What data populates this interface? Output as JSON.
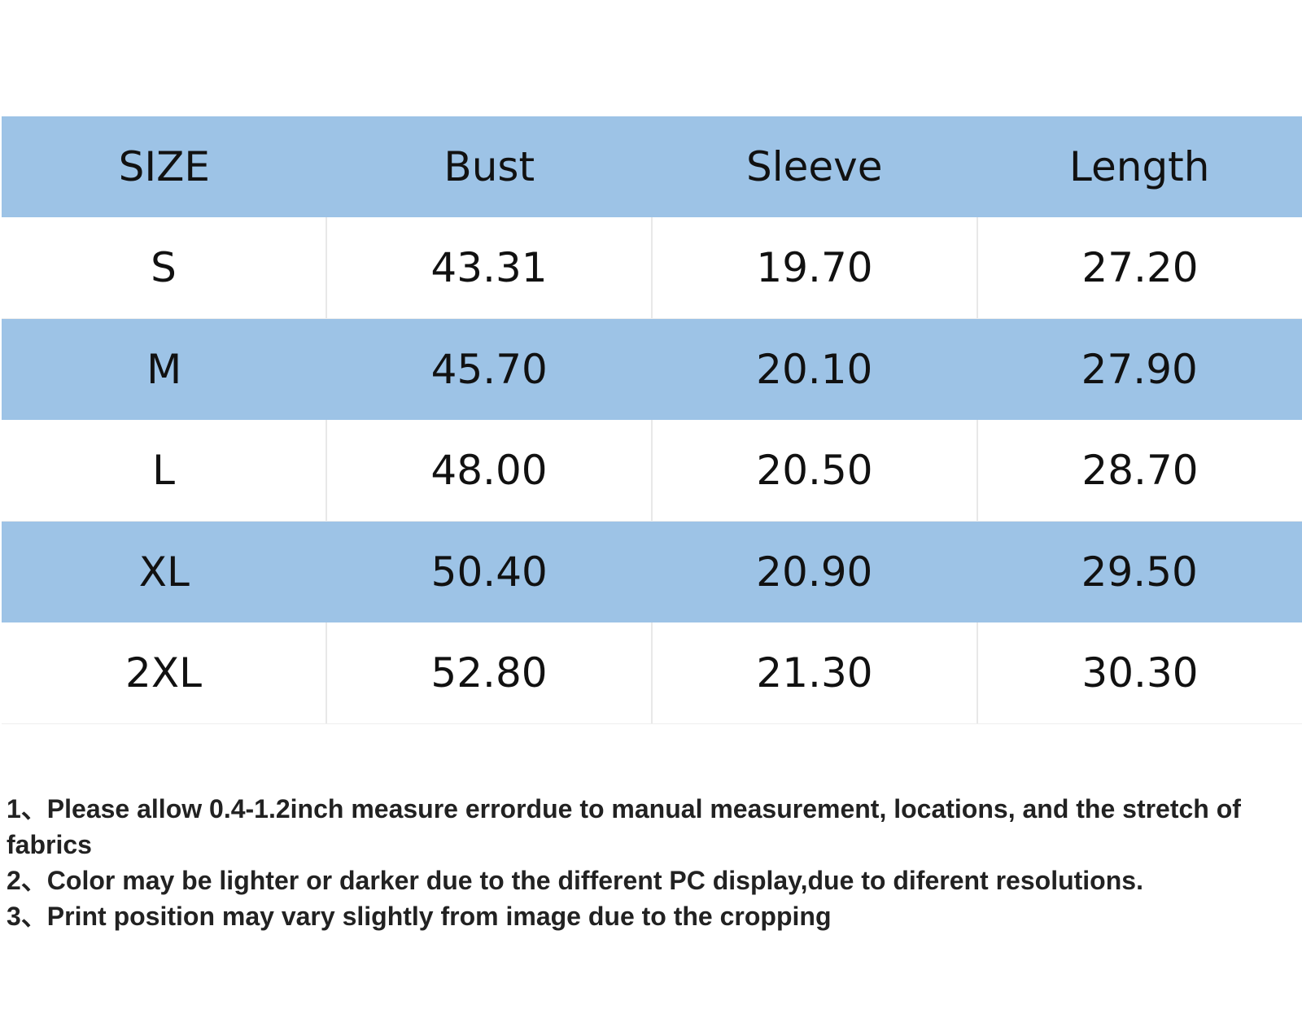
{
  "table": {
    "header": [
      "SIZE",
      "Bust",
      "Sleeve",
      "Length"
    ],
    "rows": [
      [
        "S",
        "43.31",
        "19.70",
        "27.20"
      ],
      [
        "M",
        "45.70",
        "20.10",
        "27.90"
      ],
      [
        "L",
        "48.00",
        "20.50",
        "28.70"
      ],
      [
        "XL",
        "50.40",
        "20.90",
        "29.50"
      ],
      [
        "2XL",
        "52.80",
        "21.30",
        "30.30"
      ]
    ]
  },
  "notes": [
    "1、Please allow 0.4-1.2inch measure errordue to manual measurement, locations, and the stretch of fabrics",
    "2、Color may be lighter or darker due to the different PC display,due to diferent resolutions.",
    "3、Print position may vary slightly from image due to the cropping"
  ]
}
